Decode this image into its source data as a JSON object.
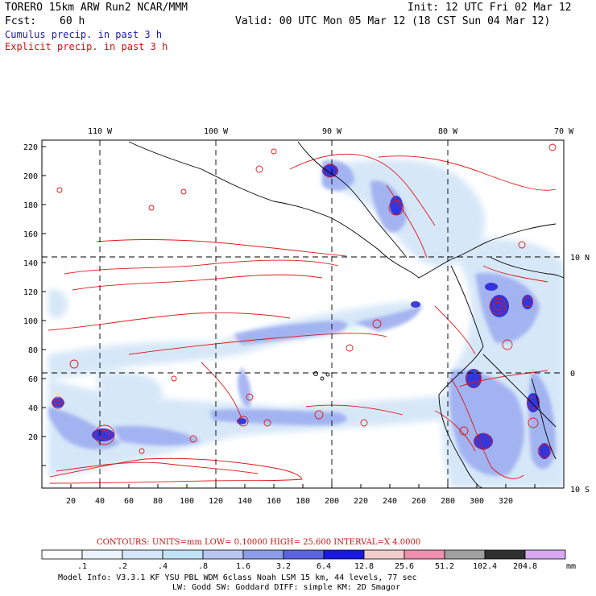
{
  "header": {
    "model": "TORERO  15km ARW   Run2     NCAR/MMM",
    "init": "Init: 12 UTC Fri 02 Mar 12",
    "fcst_label": "Fcst:",
    "fcst_value": "60 h",
    "valid": "Valid: 00 UTC Mon 05 Mar 12 (18 CST Sun 04 Mar 12)"
  },
  "legend": {
    "cumulus": "Cumulus precip. in past 3 h",
    "explicit": "Explicit precip. in past 3 h"
  },
  "map": {
    "lon_labels": [
      "110 W",
      "100 W",
      "90 W",
      "80 W",
      "70 W"
    ],
    "lat_labels": [
      "10 N",
      "0",
      "10 S"
    ],
    "y_ticks": [
      "220",
      "200",
      "180",
      "160",
      "140",
      "120",
      "100",
      "80",
      "60",
      "40",
      "20"
    ],
    "x_ticks": [
      "20",
      "40",
      "60",
      "80",
      "100",
      "120",
      "140",
      "160",
      "180",
      "200",
      "220",
      "240",
      "260",
      "280",
      "300",
      "320"
    ]
  },
  "contours": {
    "text": "CONTOURS:  UNITS=mm  LOW= 0.10000      HIGH=  25.600     INTERVAL=X  4.0000"
  },
  "colorbar": {
    "unit": "mm",
    "labels": [
      ".1",
      ".2",
      ".4",
      ".8",
      "1.6",
      "3.2",
      "6.4",
      "12.8",
      "25.6",
      "51.2",
      "102.4",
      "204.8"
    ],
    "colors": [
      "#ffffff",
      "#eaf3fb",
      "#d2e6f8",
      "#c0e2f6",
      "#b8c6f2",
      "#8c9ce8",
      "#5a64e0",
      "#1818e0",
      "#f2cccc",
      "#ef8fb0",
      "#a0a0a0",
      "#303030",
      "#d8a8f0"
    ]
  },
  "footer": {
    "line1": "Model Info: V3.3.1   KF    YSU PBL  WDM 6class  Noah LSM  15 km,   44 levels,   77 sec",
    "line2": "LW: Godd SW: Goddard DIFF: simple KM: 2D Smagor"
  }
}
